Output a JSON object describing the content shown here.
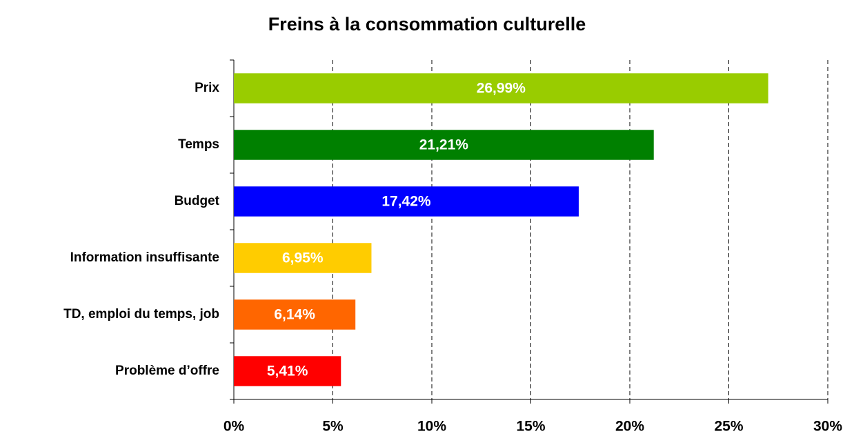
{
  "chart_data": {
    "type": "bar",
    "orientation": "horizontal",
    "title": "Freins à la consommation culturelle",
    "categories": [
      "Prix",
      "Temps",
      "Budget",
      "Information insuffisante",
      "TD, emploi du temps, job",
      "Problème d’offre"
    ],
    "values": [
      26.99,
      21.21,
      17.42,
      6.95,
      6.14,
      5.41
    ],
    "value_labels": [
      "26,99%",
      "21,21%",
      "17,42%",
      "6,95%",
      "6,14%",
      "5,41%"
    ],
    "colors": [
      "#99cc00",
      "#008000",
      "#0000ff",
      "#ffcc00",
      "#ff6600",
      "#ff0000"
    ],
    "xlim": [
      0,
      30
    ],
    "xticks": [
      {
        "value": 0,
        "label": "0%"
      },
      {
        "value": 5,
        "label": "5%"
      },
      {
        "value": 10,
        "label": "10%"
      },
      {
        "value": 15,
        "label": "15%"
      },
      {
        "value": 20,
        "label": "20%"
      },
      {
        "value": 25,
        "label": "25%"
      },
      {
        "value": 30,
        "label": "30%"
      }
    ],
    "grid": true
  }
}
